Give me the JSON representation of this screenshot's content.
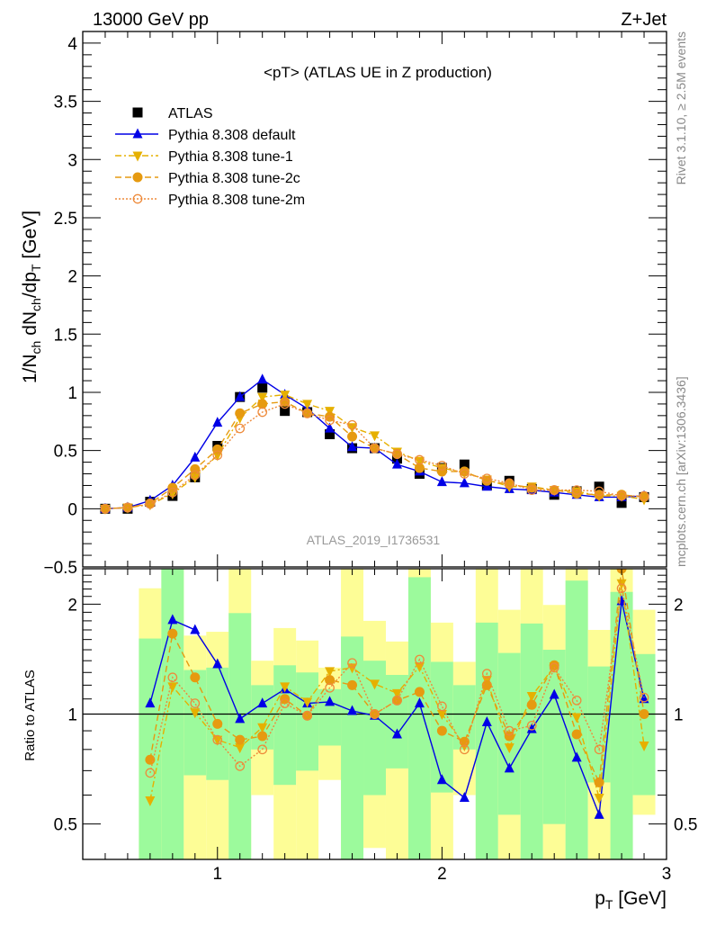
{
  "header": {
    "left": "13000 GeV pp",
    "right": "Z+Jet"
  },
  "side_text": {
    "rivet": "Rivet 3.1.10, ≥ 2.5M events",
    "mcplots": "mcplots.cern.ch [arXiv:1306.3436]"
  },
  "watermark": "ATLAS_2019_I1736531",
  "chart_data": [
    {
      "type": "line",
      "title": "<pT> (ATLAS UE in Z production)",
      "ylabel": "1/N_ch dN_ch/dp_T [GeV]",
      "ylabel_parts": {
        "a": "1/N",
        "a_sub": "ch",
        "b": " dN",
        "b_sub": "ch",
        "c": "/dp",
        "c_sub": "T",
        "d": " [GeV]"
      },
      "xlim": [
        0.4,
        3.0
      ],
      "ylim": [
        -0.5,
        4.1
      ],
      "yticks": [
        -0.5,
        0,
        0.5,
        1,
        1.5,
        2,
        2.5,
        3,
        3.5,
        4
      ],
      "ytick_labels": [
        "−0.5",
        "0",
        "0.5",
        "1",
        "1.5",
        "2",
        "2.5",
        "3",
        "3.5",
        "4"
      ],
      "legend_position": "top-left",
      "x": [
        0.5,
        0.6,
        0.7,
        0.8,
        0.9,
        1.0,
        1.1,
        1.2,
        1.3,
        1.4,
        1.5,
        1.6,
        1.7,
        1.8,
        1.9,
        2.0,
        2.1,
        2.2,
        2.3,
        2.4,
        2.5,
        2.6,
        2.7,
        2.8,
        2.9
      ],
      "series": [
        {
          "name": "ATLAS",
          "color": "#000000",
          "marker": "square",
          "line": "none",
          "values": [
            0.0,
            0.0,
            0.06,
            0.11,
            0.27,
            0.54,
            0.96,
            1.04,
            0.84,
            0.83,
            0.64,
            0.52,
            0.52,
            0.43,
            0.3,
            0.35,
            0.38,
            0.2,
            0.24,
            0.17,
            0.12,
            0.15,
            0.19,
            0.05,
            0.1
          ]
        },
        {
          "name": "Pythia 8.308 default",
          "color": "#0000e6",
          "marker": "triangle-up",
          "line": "solid",
          "values": [
            0.0,
            0.01,
            0.07,
            0.2,
            0.44,
            0.74,
            0.96,
            1.11,
            0.98,
            0.86,
            0.69,
            0.53,
            0.52,
            0.38,
            0.32,
            0.23,
            0.22,
            0.19,
            0.17,
            0.16,
            0.14,
            0.12,
            0.1,
            0.1,
            0.11
          ]
        },
        {
          "name": "Pythia 8.308 tune-1",
          "color": "#e6b000",
          "marker": "triangle-down",
          "line": "dashdot",
          "values": [
            0.0,
            0.01,
            0.035,
            0.13,
            0.27,
            0.46,
            0.78,
            0.96,
            0.98,
            0.9,
            0.84,
            0.7,
            0.63,
            0.49,
            0.41,
            0.35,
            0.31,
            0.25,
            0.19,
            0.19,
            0.16,
            0.15,
            0.11,
            0.11,
            0.08
          ]
        },
        {
          "name": "Pythia 8.308 tune-2c",
          "color": "#e69a10",
          "marker": "circle",
          "line": "dashed",
          "values": [
            0.0,
            0.01,
            0.045,
            0.18,
            0.34,
            0.51,
            0.82,
            0.9,
            0.92,
            0.82,
            0.79,
            0.62,
            0.52,
            0.47,
            0.35,
            0.32,
            0.32,
            0.24,
            0.21,
            0.18,
            0.16,
            0.13,
            0.12,
            0.12,
            0.1
          ]
        },
        {
          "name": "Pythia 8.308 tune-2m",
          "color": "#ee8a3a",
          "marker": "open-circle",
          "line": "dotted",
          "values": [
            0.0,
            0.01,
            0.04,
            0.14,
            0.29,
            0.46,
            0.69,
            0.83,
            0.9,
            0.82,
            0.76,
            0.72,
            0.52,
            0.47,
            0.42,
            0.37,
            0.3,
            0.26,
            0.22,
            0.16,
            0.16,
            0.16,
            0.15,
            0.11,
            0.11
          ]
        }
      ]
    },
    {
      "type": "line",
      "ylabel": "Ratio to ATLAS",
      "xlabel": "p_T [GeV]",
      "xlabel_parts": {
        "a": "p",
        "a_sub": "T",
        "b": " [GeV]"
      },
      "yscale": "log",
      "xlim": [
        0.4,
        3.0
      ],
      "ylim": [
        0.4,
        2.5
      ],
      "xticks": [
        1,
        2,
        3
      ],
      "xtick_labels": [
        "1",
        "2",
        "3"
      ],
      "yticks": [
        0.5,
        1,
        2
      ],
      "ytick_labels": [
        "0.5",
        "1",
        "2"
      ],
      "x": [
        0.7,
        0.8,
        0.9,
        1.0,
        1.1,
        1.2,
        1.3,
        1.4,
        1.5,
        1.6,
        1.7,
        1.8,
        1.9,
        2.0,
        2.1,
        2.2,
        2.3,
        2.4,
        2.5,
        2.6,
        2.7,
        2.8,
        2.9
      ],
      "bands": {
        "inner_color": "#9cfa9c",
        "outer_color": "#fdfd96",
        "inner": [
          [
            0.3,
            1.61
          ],
          [
            0.3,
            3
          ],
          [
            0.68,
            1.32
          ],
          [
            0.66,
            1.34
          ],
          [
            0.3,
            1.89
          ],
          [
            0.8,
            1.2
          ],
          [
            0.64,
            1.36
          ],
          [
            0.7,
            1.3
          ],
          [
            0.82,
            1.17
          ],
          [
            0.3,
            1.63
          ],
          [
            0.6,
            1.4
          ],
          [
            0.71,
            1.28
          ],
          [
            0.3,
            2.37
          ],
          [
            0.61,
            1.39
          ],
          [
            0.8,
            1.2
          ],
          [
            0.3,
            1.78
          ],
          [
            0.53,
            1.47
          ],
          [
            0.3,
            1.77
          ],
          [
            0.5,
            1.5
          ],
          [
            0.3,
            2.32
          ],
          [
            0.65,
            1.35
          ],
          [
            0.3,
            2.16
          ],
          [
            0.6,
            1.46
          ]
        ],
        "outer": [
          [
            0.3,
            2.21
          ],
          [
            0.3,
            3
          ],
          [
            0.3,
            1.64
          ],
          [
            0.3,
            1.68
          ],
          [
            0.3,
            3
          ],
          [
            0.6,
            1.4
          ],
          [
            0.3,
            1.72
          ],
          [
            0.3,
            1.59
          ],
          [
            0.66,
            1.34
          ],
          [
            0.3,
            3
          ],
          [
            0.43,
            1.8
          ],
          [
            0.3,
            1.58
          ],
          [
            0.3,
            3
          ],
          [
            0.3,
            1.78
          ],
          [
            0.6,
            1.39
          ],
          [
            0.3,
            3
          ],
          [
            0.3,
            1.93
          ],
          [
            0.3,
            3
          ],
          [
            0.3,
            1.99
          ],
          [
            0.3,
            3
          ],
          [
            0.3,
            1.7
          ],
          [
            0.3,
            3
          ],
          [
            0.53,
            1.93
          ]
        ]
      },
      "series": [
        {
          "name": "Pythia 8.308 default",
          "values": [
            1.07,
            1.81,
            1.7,
            1.37,
            0.97,
            1.07,
            1.17,
            1.07,
            1.08,
            1.02,
            0.99,
            0.88,
            1.07,
            0.66,
            0.59,
            0.95,
            0.71,
            0.91,
            1.13,
            0.76,
            0.53,
            2.04,
            1.1
          ]
        },
        {
          "name": "Pythia 8.308 tune-1",
          "values": [
            0.58,
            1.19,
            1.01,
            0.85,
            0.81,
            0.92,
            1.19,
            1.08,
            1.31,
            1.34,
            1.21,
            1.14,
            1.35,
            1.0,
            0.82,
            1.24,
            0.81,
            1.12,
            1.35,
            0.98,
            0.59,
            2.28,
            0.82
          ]
        },
        {
          "name": "Pythia 8.308 tune-2c",
          "values": [
            0.75,
            1.66,
            1.26,
            0.94,
            0.85,
            0.87,
            1.1,
            0.99,
            1.24,
            1.2,
            1.0,
            1.09,
            1.15,
            0.9,
            0.84,
            1.2,
            0.87,
            1.06,
            1.36,
            0.88,
            0.65,
            2.5,
            1.0
          ]
        },
        {
          "name": "Pythia 8.308 tune-2m",
          "values": [
            0.69,
            1.26,
            1.07,
            0.85,
            0.72,
            0.8,
            1.07,
            0.99,
            1.18,
            1.38,
            1.0,
            1.09,
            1.41,
            1.05,
            0.8,
            1.29,
            0.9,
            0.93,
            1.34,
            1.09,
            0.8,
            2.21,
            1.11
          ]
        }
      ]
    }
  ]
}
